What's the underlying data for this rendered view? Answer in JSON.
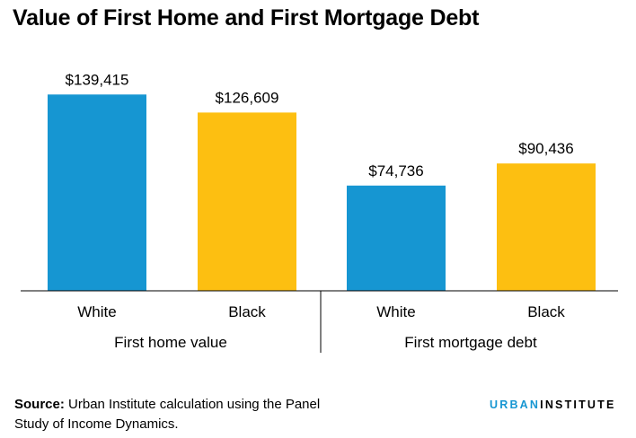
{
  "chart_data": {
    "type": "bar",
    "title": "Value of First Home and First Mortgage Debt",
    "groups": [
      {
        "name": "First home value",
        "bars": [
          {
            "category": "White",
            "value": 139415,
            "label": "$139,415",
            "color": "#1696d2"
          },
          {
            "category": "Black",
            "value": 126609,
            "label": "$126,609",
            "color": "#fdbf11"
          }
        ]
      },
      {
        "name": "First mortgage debt",
        "bars": [
          {
            "category": "White",
            "value": 74736,
            "label": "$74,736",
            "color": "#1696d2"
          },
          {
            "category": "Black",
            "value": 90436,
            "label": "$90,436",
            "color": "#fdbf11"
          }
        ]
      }
    ],
    "ylim": [
      0,
      160000
    ],
    "grid": false
  },
  "footer": {
    "source_label": "Source:",
    "source_text": " Urban Institute calculation using the Panel Study of Income Dynamics.",
    "logo_part1": "URBAN",
    "logo_part2": "INSTITUTE"
  },
  "colors": {
    "white_bar": "#1696d2",
    "black_bar": "#fdbf11"
  }
}
